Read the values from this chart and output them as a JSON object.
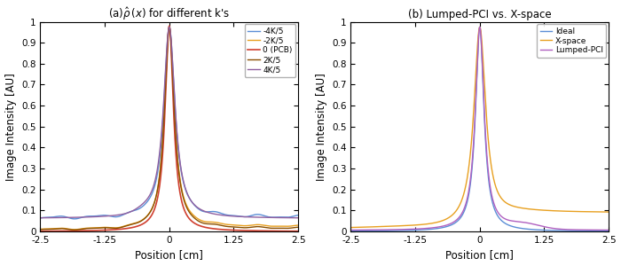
{
  "title_a": "(a)$\\hat{\\rho}\\,(x)$ for different k's",
  "title_b": "(b) Lumped-PCI vs. X-space",
  "xlabel": "Position [cm]",
  "ylabel": "Image Intensity [AU]",
  "xlim": [
    -2.5,
    2.5
  ],
  "ylim": [
    0,
    1
  ],
  "xticks": [
    -2.5,
    -1.25,
    0,
    1.25,
    2.5
  ],
  "yticks": [
    0,
    0.1,
    0.2,
    0.3,
    0.4,
    0.5,
    0.6,
    0.7,
    0.8,
    0.9,
    1.0
  ],
  "colors_a": {
    "-4K/5": "#5B8ED6",
    "-2K/5": "#E8A020",
    "0 (PCB)": "#D04030",
    "2K/5": "#8B5000",
    "4K/5": "#9060A0"
  },
  "colors_b": {
    "Ideal": "#5B8ED6",
    "X-space": "#E8A020",
    "Lumped-PCI": "#B060C0"
  },
  "background_color": "#ffffff",
  "figsize": [
    7.0,
    3.0
  ],
  "dpi": 100
}
